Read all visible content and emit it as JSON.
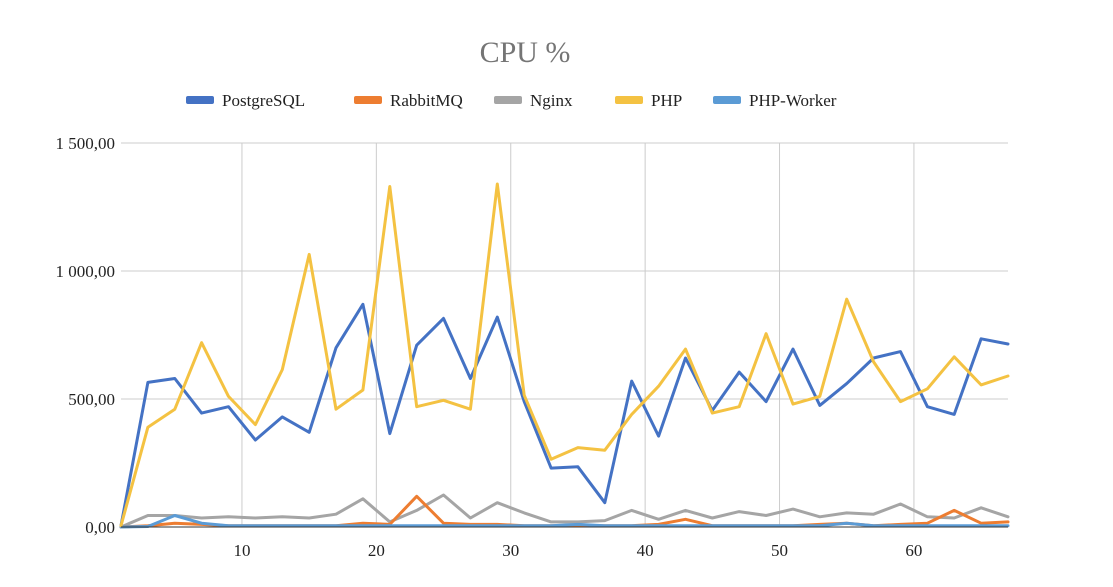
{
  "chart_data": {
    "type": "line",
    "title": "CPU %",
    "xlabel": "",
    "ylabel": "",
    "xlim": [
      1,
      67
    ],
    "ylim": [
      0,
      1500
    ],
    "x_ticks": [
      10,
      20,
      30,
      40,
      50,
      60
    ],
    "x_tick_labels": [
      "10",
      "20",
      "30",
      "40",
      "50",
      "60"
    ],
    "y_ticks": [
      0,
      500,
      1000,
      1500
    ],
    "y_tick_labels": [
      "0,00",
      "500,00",
      "1 000,00",
      "1 500,00"
    ],
    "grid": true,
    "legend_position": "top",
    "x": [
      1,
      3,
      5,
      7,
      9,
      11,
      13,
      15,
      17,
      19,
      21,
      23,
      25,
      27,
      29,
      31,
      33,
      35,
      37,
      39,
      41,
      43,
      45,
      47,
      49,
      51,
      53,
      55,
      57,
      59,
      61,
      63,
      65,
      67
    ],
    "series": [
      {
        "name": "PostgreSQL",
        "color": "#4472c4",
        "values": [
          5,
          565,
          580,
          445,
          470,
          340,
          430,
          370,
          700,
          870,
          365,
          710,
          815,
          580,
          820,
          490,
          230,
          235,
          95,
          570,
          355,
          660,
          455,
          605,
          490,
          695,
          475,
          560,
          660,
          685,
          470,
          440,
          735,
          715
        ]
      },
      {
        "name": "RabbitMQ",
        "color": "#ed7d31",
        "values": [
          0,
          5,
          15,
          10,
          5,
          5,
          5,
          5,
          5,
          15,
          10,
          120,
          15,
          10,
          10,
          5,
          5,
          5,
          5,
          5,
          10,
          30,
          5,
          5,
          5,
          5,
          10,
          15,
          5,
          10,
          15,
          65,
          15,
          20
        ]
      },
      {
        "name": "Nginx",
        "color": "#a5a5a5",
        "values": [
          0,
          45,
          45,
          35,
          40,
          35,
          40,
          35,
          50,
          110,
          20,
          65,
          125,
          35,
          95,
          55,
          20,
          20,
          25,
          65,
          30,
          65,
          35,
          60,
          45,
          70,
          40,
          55,
          50,
          90,
          40,
          35,
          75,
          40
        ]
      },
      {
        "name": "PHP",
        "color": "#f4c242",
        "values": [
          5,
          390,
          460,
          720,
          510,
          400,
          615,
          1065,
          460,
          535,
          1330,
          470,
          495,
          460,
          1340,
          515,
          265,
          310,
          300,
          440,
          550,
          695,
          445,
          470,
          755,
          480,
          510,
          890,
          645,
          490,
          540,
          665,
          555,
          590
        ]
      },
      {
        "name": "PHP-Worker",
        "color": "#5b9bd5",
        "values": [
          0,
          2,
          45,
          15,
          5,
          5,
          5,
          5,
          5,
          5,
          5,
          5,
          5,
          5,
          5,
          5,
          5,
          10,
          5,
          5,
          5,
          5,
          5,
          5,
          5,
          5,
          5,
          15,
          5,
          5,
          5,
          5,
          5,
          5
        ]
      }
    ]
  }
}
